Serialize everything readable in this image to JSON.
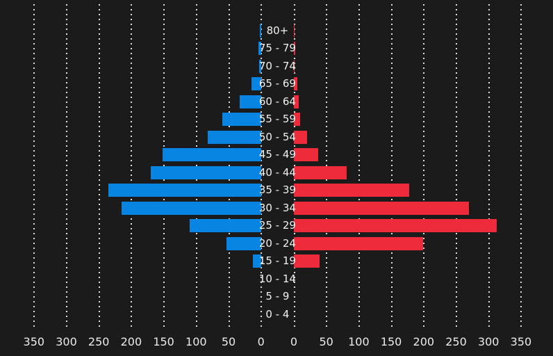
{
  "colors": {
    "background": "#1b1b1b",
    "left_bar": "#0885e2",
    "right_bar": "#ee2b3b",
    "grid": "#ebebeb",
    "text": "#f2f2f2"
  },
  "chart_data": {
    "type": "bar",
    "subtype": "population-pyramid",
    "orientation": "horizontal",
    "title": "",
    "xlabel": "",
    "ylabel": "",
    "grid": "dotted-vertical",
    "legend": "none",
    "categories": [
      "80+",
      "75 - 79",
      "70 - 74",
      "65 - 69",
      "60 - 64",
      "55 - 59",
      "50 - 54",
      "45 - 49",
      "40 - 44",
      "35 - 39",
      "30 - 34",
      "25 - 29",
      "20 - 24",
      "15 - 19",
      "10 - 14",
      "5 - 9",
      "0 - 4"
    ],
    "series": [
      {
        "name": "left",
        "side": "left",
        "color": "#0885e2",
        "values": [
          2,
          4,
          3,
          15,
          33,
          60,
          82,
          152,
          170,
          235,
          215,
          110,
          53,
          12,
          0,
          0,
          0
        ]
      },
      {
        "name": "right",
        "side": "right",
        "color": "#ee2b3b",
        "values": [
          1,
          2,
          1,
          5,
          8,
          10,
          20,
          37,
          81,
          178,
          270,
          313,
          199,
          40,
          0,
          0,
          0
        ]
      }
    ],
    "axis": {
      "max": 350,
      "tick_step": 50,
      "left_tick_labels": [
        "350",
        "300",
        "250",
        "200",
        "150",
        "100",
        "50",
        "0"
      ],
      "right_tick_labels": [
        "0",
        "50",
        "100",
        "150",
        "200",
        "250",
        "300",
        "350"
      ]
    }
  }
}
